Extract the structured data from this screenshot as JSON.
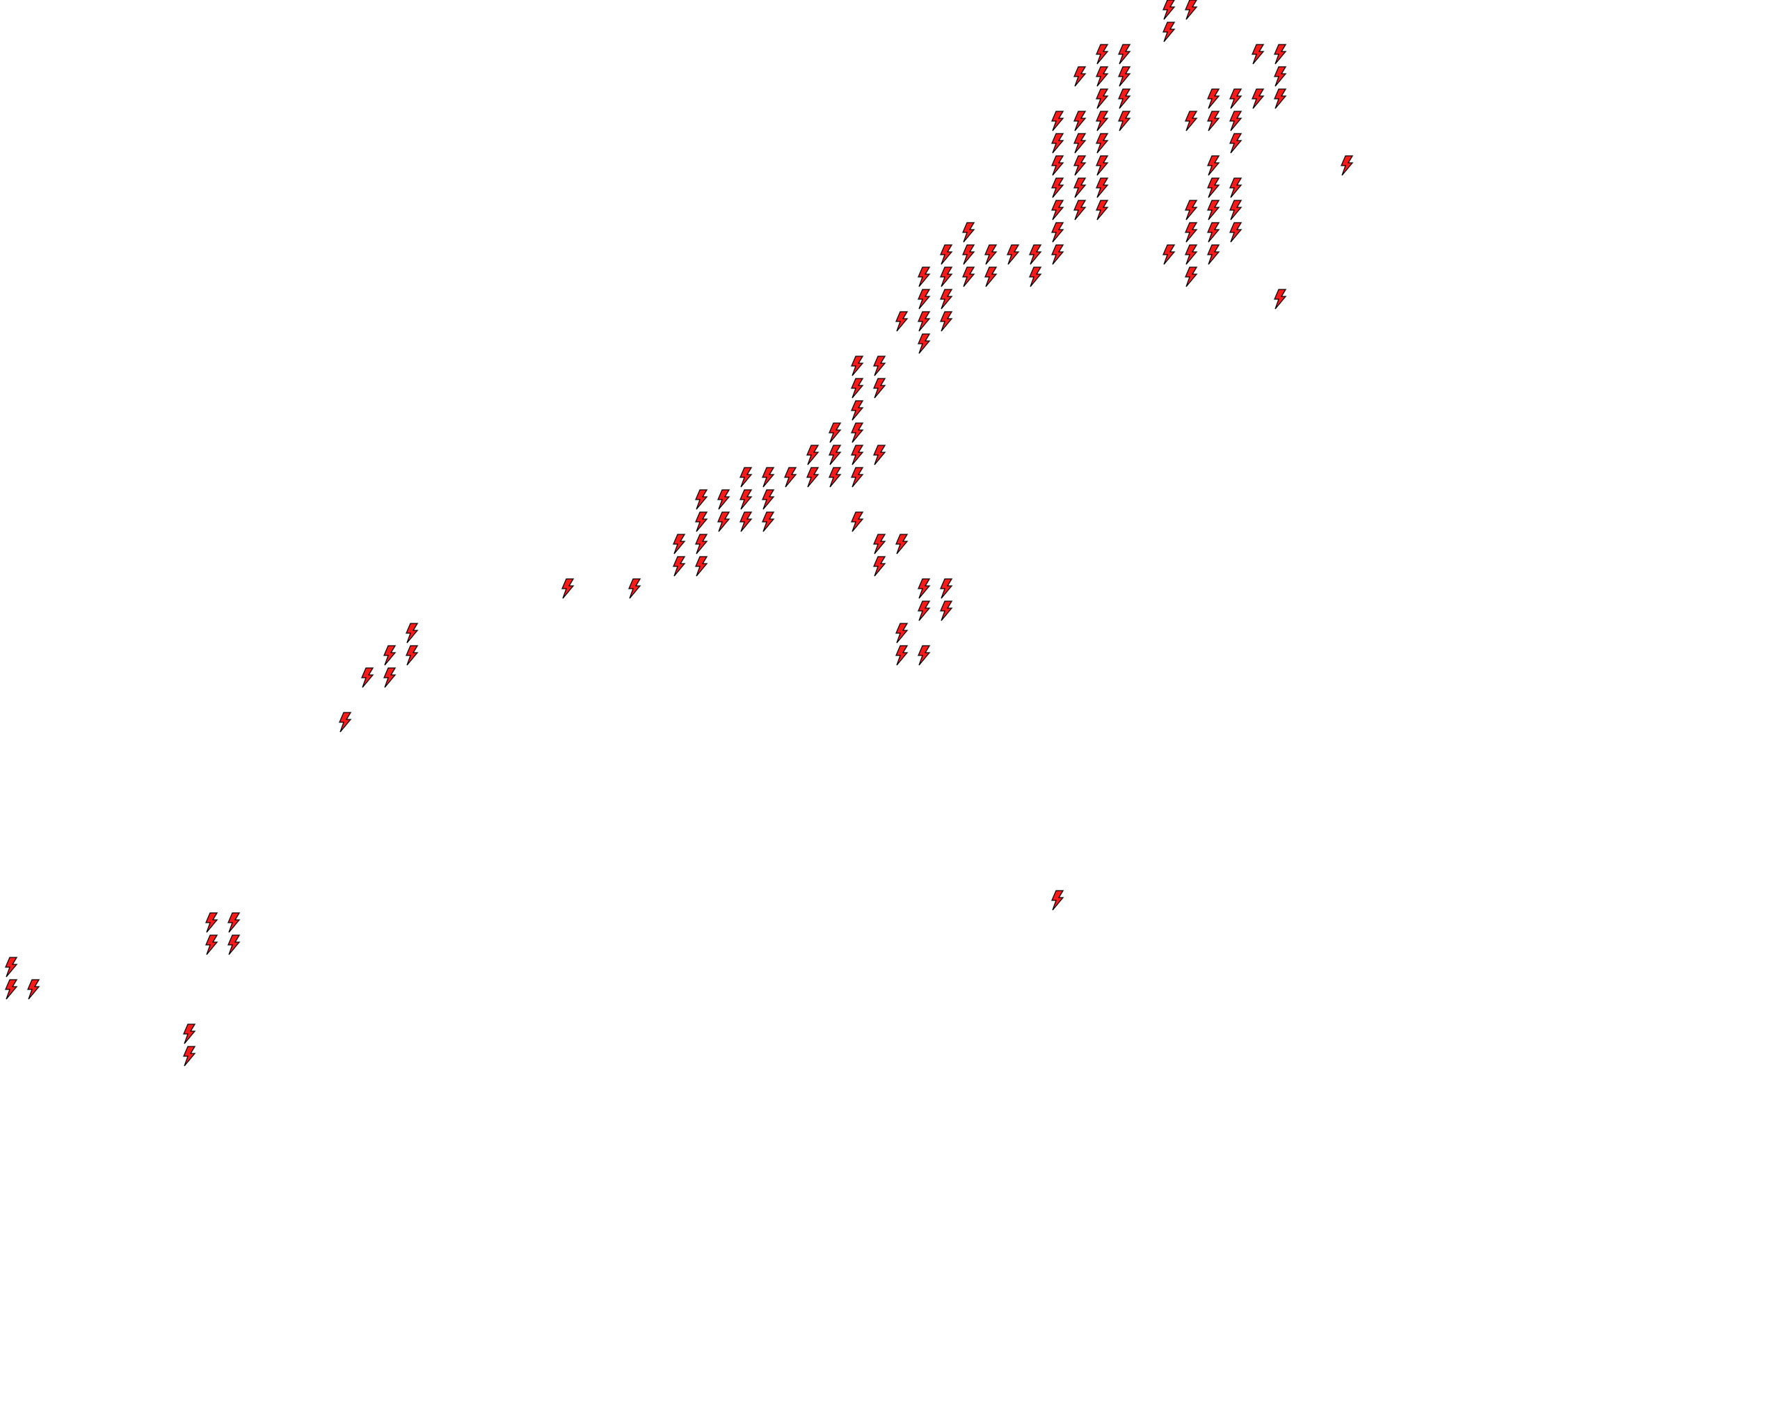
{
  "map": {
    "background_color": "#ffffff",
    "marker": {
      "icon": "lightning-bolt-icon",
      "fill_color": "#ff1a1a",
      "stroke_color": "#000000"
    }
  }
}
